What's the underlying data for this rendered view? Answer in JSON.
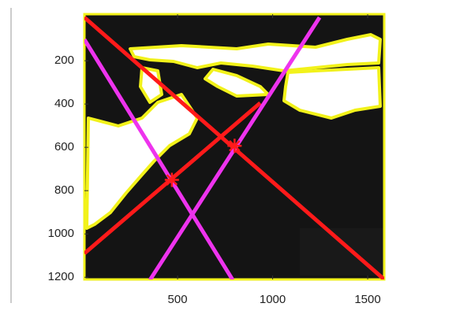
{
  "chart_data": {
    "type": "line",
    "xlim": [
      10,
      1587
    ],
    "ylim": [
      -15,
      1210
    ],
    "y_reversed": true,
    "xticks": [
      500,
      1000,
      1500
    ],
    "yticks": [
      200,
      400,
      600,
      800,
      1000,
      1200
    ],
    "series": [
      {
        "color": "#ff1a1a",
        "x": [
          10,
          1587
        ],
        "values": [
          0,
          1210
        ]
      },
      {
        "color": "#ff1a1a",
        "x": [
          10,
          935
        ],
        "values": [
          1090,
          395
        ]
      },
      {
        "color": "#ee33ee",
        "x": [
          10,
          790
        ],
        "values": [
          102,
          1212
        ]
      },
      {
        "color": "#ee33ee",
        "x": [
          355,
          1247
        ],
        "values": [
          1212,
          0
        ]
      },
      {
        "color": "#ff1a1a",
        "marker": "star",
        "x": [
          470,
          800
        ],
        "values": [
          750,
          593
        ]
      }
    ]
  }
}
